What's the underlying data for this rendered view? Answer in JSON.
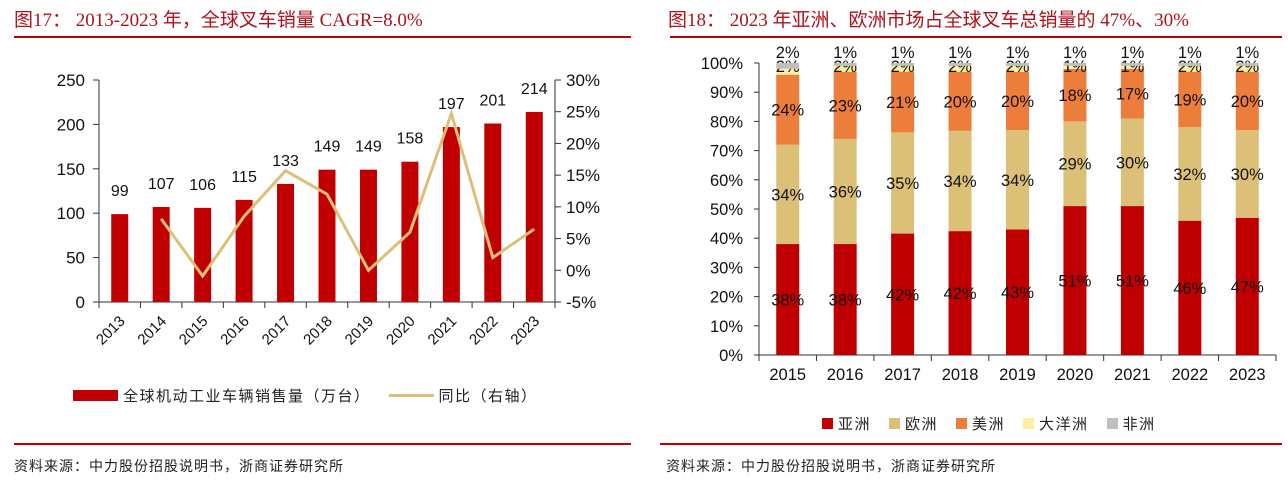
{
  "left": {
    "title": "图17：  2013-2023 年，全球叉车销量 CAGR=8.0%",
    "source": "资料来源：中力股份招股说明书，浙商证券研究所",
    "legend": [
      {
        "label": "全球机动工业车辆销售量（万台）",
        "type": "bar",
        "color": "#c00000"
      },
      {
        "label": "同比（右轴）",
        "type": "line",
        "color": "#dcc077"
      }
    ]
  },
  "right": {
    "title": "图18：  2023 年亚洲、欧洲市场占全球叉车总销量的 47%、30%",
    "source": "资料来源：中力股份招股说明书，浙商证券研究所",
    "legend": [
      {
        "label": "亚洲",
        "color": "#c00000"
      },
      {
        "label": "欧洲",
        "color": "#dcc077"
      },
      {
        "label": "美洲",
        "color": "#ed7d3b"
      },
      {
        "label": "大洋洲",
        "color": "#fbf1a0"
      },
      {
        "label": "非洲",
        "color": "#bfbfbf"
      }
    ]
  },
  "chart_data": [
    {
      "type": "bar",
      "title": "2013-2023 年，全球叉车销量 CAGR=8.0%",
      "categories": [
        "2013",
        "2014",
        "2015",
        "2016",
        "2017",
        "2018",
        "2019",
        "2020",
        "2021",
        "2022",
        "2023"
      ],
      "series": [
        {
          "name": "全球机动工业车辆销售量（万台）",
          "type": "bar",
          "axis": "left",
          "color": "#c00000",
          "values": [
            99,
            107,
            106,
            115,
            133,
            149,
            149,
            158,
            197,
            201,
            214
          ],
          "labels": [
            "99",
            "107",
            "106",
            "115",
            "133",
            "149",
            "149",
            "158",
            "197",
            "201",
            "214"
          ]
        },
        {
          "name": "同比（右轴）",
          "type": "line",
          "axis": "right",
          "color": "#dcc077",
          "values": [
            null,
            8.1,
            -0.9,
            8.5,
            15.7,
            12.0,
            0.0,
            6.0,
            24.7,
            2.0,
            6.5
          ]
        }
      ],
      "y_left": {
        "min": 0,
        "max": 250,
        "ticks": [
          "0",
          "50",
          "100",
          "150",
          "200",
          "250"
        ],
        "tick_values": [
          0,
          50,
          100,
          150,
          200,
          250
        ]
      },
      "y_right": {
        "min": -5,
        "max": 30,
        "ticks": [
          "-5%",
          "0%",
          "5%",
          "10%",
          "15%",
          "20%",
          "25%",
          "30%"
        ],
        "tick_values": [
          -5,
          0,
          5,
          10,
          15,
          20,
          25,
          30
        ]
      },
      "grid": false,
      "legend_position": "bottom"
    },
    {
      "type": "bar",
      "stacked": true,
      "title": "2023 年亚洲、欧洲市场占全球叉车总销量的 47%、30%",
      "categories": [
        "2015",
        "2016",
        "2017",
        "2018",
        "2019",
        "2020",
        "2021",
        "2022",
        "2023"
      ],
      "series": [
        {
          "name": "亚洲",
          "color": "#c00000",
          "values": [
            38,
            38,
            42,
            42,
            43,
            51,
            51,
            46,
            47
          ]
        },
        {
          "name": "欧洲",
          "color": "#dcc077",
          "values": [
            34,
            36,
            35,
            34,
            34,
            29,
            30,
            32,
            30
          ]
        },
        {
          "name": "美洲",
          "color": "#ed7d3b",
          "values": [
            24,
            23,
            21,
            20,
            20,
            18,
            17,
            19,
            20
          ]
        },
        {
          "name": "大洋洲",
          "color": "#fbf1a0",
          "values": [
            2,
            2,
            2,
            2,
            2,
            1,
            1,
            2,
            2
          ]
        },
        {
          "name": "非洲",
          "color": "#bfbfbf",
          "values": [
            2,
            1,
            1,
            1,
            1,
            1,
            1,
            1,
            1
          ]
        }
      ],
      "y": {
        "min": 0,
        "max": 100,
        "ticks": [
          "0%",
          "10%",
          "20%",
          "30%",
          "40%",
          "50%",
          "60%",
          "70%",
          "80%",
          "90%",
          "100%"
        ],
        "tick_values": [
          0,
          10,
          20,
          30,
          40,
          50,
          60,
          70,
          80,
          90,
          100
        ]
      },
      "grid": false,
      "legend_position": "bottom"
    }
  ]
}
